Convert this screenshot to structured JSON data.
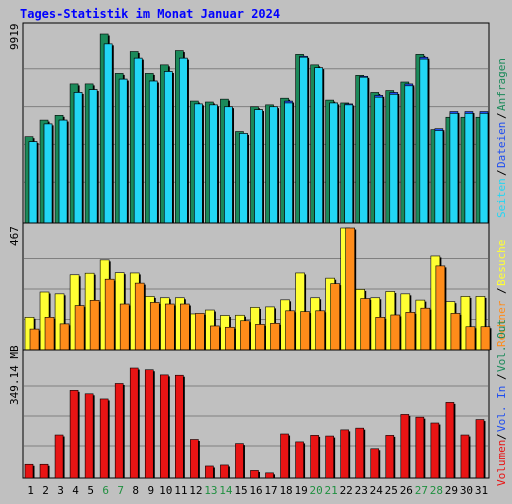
{
  "title": "Tages-Statistik im Monat Januar 2024",
  "colors": {
    "background": "#c0c0c0",
    "title": "#0000ff",
    "grid": "#808080",
    "border": "#000000",
    "anfragen": "#1b8a5a",
    "dateien": "#1f4ef0",
    "seiten": "#22d6f4",
    "besuche": "#ffff33",
    "rechner": "#ff8c1a",
    "volumen": "#e81414",
    "weekend_label": "#1f8f3f",
    "weekday_label": "#000000"
  },
  "right_labels": [
    {
      "text": "Anfragen",
      "color": "#1b8a5a"
    },
    {
      "text": "Dateien",
      "color": "#1f4ef0"
    },
    {
      "text": "Seiten",
      "color": "#22d6f4"
    },
    {
      "text": "Besuche",
      "color": "#ffff33"
    },
    {
      "text": "Rechner",
      "color": "#ff8c1a"
    },
    {
      "text": "Vol. Out",
      "color": "#1b8a5a"
    },
    {
      "text": "Vol. In",
      "color": "#1f4ef0"
    },
    {
      "text": "Volumen",
      "color": "#e81414"
    }
  ],
  "chart_data": [
    {
      "type": "bar",
      "panel": "requests",
      "axis_max_label": "9919",
      "ylim": [
        0,
        9919
      ],
      "categories": [
        "1",
        "2",
        "3",
        "4",
        "5",
        "6",
        "7",
        "8",
        "9",
        "10",
        "11",
        "12",
        "13",
        "14",
        "15",
        "16",
        "17",
        "18",
        "19",
        "20",
        "21",
        "22",
        "23",
        "24",
        "25",
        "26",
        "27",
        "28",
        "29",
        "30",
        "31"
      ],
      "weekend_days": [
        "6",
        "7",
        "13",
        "14",
        "20",
        "21",
        "27",
        "28"
      ],
      "series": [
        {
          "name": "Anfragen",
          "values": [
            4530,
            5400,
            5650,
            7300,
            7300,
            9919,
            7850,
            9000,
            7850,
            8300,
            9050,
            6400,
            6350,
            6500,
            4800,
            6100,
            6200,
            6550,
            8850,
            8300,
            6450,
            6300,
            7750,
            6850,
            6950,
            7400,
            8850,
            4900,
            5550,
            5550,
            5550
          ]
        },
        {
          "name": "Dateien",
          "values": [
            4270,
            5200,
            5400,
            6850,
            7000,
            9400,
            7550,
            8650,
            7450,
            7950,
            8650,
            6250,
            6200,
            6100,
            4700,
            5950,
            6100,
            6400,
            8750,
            8150,
            6300,
            6250,
            7700,
            6700,
            6850,
            7300,
            8700,
            4950,
            5850,
            5850,
            5850
          ]
        },
        {
          "name": "Seiten",
          "values": [
            4270,
            5200,
            5400,
            6850,
            7000,
            9400,
            7550,
            8650,
            7450,
            7950,
            8650,
            6250,
            6200,
            6100,
            4700,
            5950,
            6100,
            6300,
            8700,
            8150,
            6300,
            6200,
            7650,
            6600,
            6750,
            7200,
            8600,
            4850,
            5750,
            5750,
            5750
          ]
        }
      ]
    },
    {
      "type": "bar",
      "panel": "visits",
      "axis_max_label": "467",
      "ylim": [
        0,
        467
      ],
      "categories": [
        "1",
        "2",
        "3",
        "4",
        "5",
        "6",
        "7",
        "8",
        "9",
        "10",
        "11",
        "12",
        "13",
        "14",
        "15",
        "16",
        "17",
        "18",
        "19",
        "20",
        "21",
        "22",
        "23",
        "24",
        "25",
        "26",
        "27",
        "28",
        "29",
        "30",
        "31"
      ],
      "series": [
        {
          "name": "Besuche",
          "values": [
            125,
            222,
            215,
            288,
            294,
            345,
            296,
            295,
            205,
            200,
            200,
            138,
            153,
            132,
            133,
            163,
            165,
            192,
            295,
            200,
            275,
            467,
            232,
            200,
            224,
            215,
            191,
            360,
            185,
            205,
            205
          ]
        },
        {
          "name": "Rechner",
          "values": [
            80,
            125,
            100,
            170,
            190,
            271,
            176,
            256,
            182,
            176,
            176,
            140,
            92,
            87,
            112,
            98,
            102,
            150,
            147,
            150,
            254,
            467,
            197,
            125,
            134,
            144,
            160,
            322,
            140,
            89,
            89
          ]
        }
      ]
    },
    {
      "type": "bar",
      "panel": "volume",
      "axis_max_label": "349.14 MB",
      "ylim": [
        0,
        349.14
      ],
      "categories": [
        "1",
        "2",
        "3",
        "4",
        "5",
        "6",
        "7",
        "8",
        "9",
        "10",
        "11",
        "12",
        "13",
        "14",
        "15",
        "16",
        "17",
        "18",
        "19",
        "20",
        "21",
        "22",
        "23",
        "24",
        "25",
        "26",
        "27",
        "28",
        "29",
        "30",
        "31"
      ],
      "series": [
        {
          "name": "Volumen",
          "values": [
            40,
            40,
            125,
            255,
            245,
            230,
            275,
            320,
            315,
            300,
            299,
            112,
            35,
            38,
            100,
            22,
            15,
            128,
            105,
            124,
            122,
            140,
            145,
            85,
            124,
            185,
            177,
            160,
            220,
            125,
            170
          ]
        }
      ]
    }
  ]
}
